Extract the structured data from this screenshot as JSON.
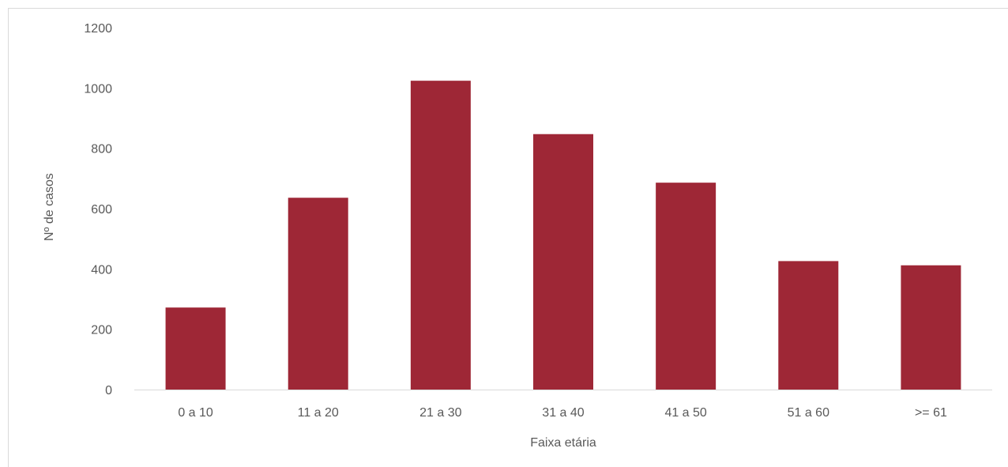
{
  "chart_data": {
    "type": "bar",
    "title": "",
    "xlabel": "Faixa etária",
    "ylabel": "Nº de casos",
    "categories": [
      "0 a 10",
      "11 a 20",
      "21 a 30",
      "31 a 40",
      "41 a 50",
      "51 a 60",
      ">= 61"
    ],
    "values": [
      272,
      636,
      1024,
      847,
      686,
      426,
      412
    ],
    "ylim": [
      0,
      1200
    ],
    "yticks": [
      0,
      200,
      400,
      600,
      800,
      1000,
      1200
    ],
    "grid": false,
    "legend": "none",
    "bar_color": "#9e2736",
    "axis_color": "#d9d9d9"
  }
}
